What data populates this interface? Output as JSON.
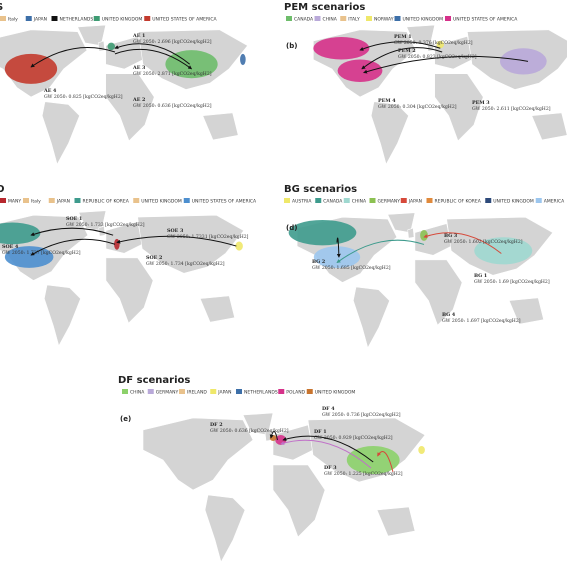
{
  "panels": [
    {
      "title": "S",
      "legend": [
        {
          "text": "Italy",
          "color": "#e9c28c"
        },
        {
          "text": "JAPAN",
          "color": "#3d6fa8"
        },
        {
          "text": "NETHERLANDS",
          "color": "#111111"
        },
        {
          "text": "UNITED KINGDOM",
          "color": "#3e9b73"
        },
        {
          "text": "UNITED STATES OF AMERICA",
          "color": "#c33b2e"
        }
      ],
      "annotations": [
        {
          "name": "AE 1",
          "text": "GW 2050: 2.696 [kgCO2eq/kgH2]"
        },
        {
          "name": "AE 3",
          "text": "GW 2050: 2.871 [kgCO2eq/kgH2]"
        },
        {
          "name": "AE 2",
          "text": "GW 2050: 0.636 [kgCO2eq/kgH2]"
        },
        {
          "name": "AE 4",
          "text": "GW 2050: 0.825 [kgCO2eq/kgH2]"
        }
      ]
    },
    {
      "title": "PEM scenarios",
      "label": "(b)",
      "legend": [
        {
          "text": "CANADA",
          "color": "#6ebd6b"
        },
        {
          "text": "CHINA",
          "color": "#b9a9d9"
        },
        {
          "text": "ITALY",
          "color": "#e9c28c"
        },
        {
          "text": "NORWAY",
          "color": "#efe86a"
        },
        {
          "text": "UNITED KINGDOM",
          "color": "#3d6fa8"
        },
        {
          "text": "UNITED STATES OF AMERICA",
          "color": "#d6318a"
        }
      ],
      "annotations": [
        {
          "name": "PEM 1",
          "text": "GW 2050: 0.376 [kgCO2eq/kgH2]"
        },
        {
          "name": "PEM 2",
          "text": "GW 2050: 0.823 [kgCO2eq/kgH2]"
        },
        {
          "name": "PEM 4",
          "text": "GW 2050: 0.304 [kgCO2eq/kgH2]"
        },
        {
          "name": "PEM 3",
          "text": "GW 2050: 2.611 [kgCO2eq/kgH2]"
        }
      ]
    },
    {
      "title": "O",
      "legend": [
        {
          "text": "MANY",
          "color": "#b7282e"
        },
        {
          "text": "Italy",
          "color": "#e9c28c"
        },
        {
          "text": "JAPAN",
          "color": "#e9c28c"
        },
        {
          "text": "REPUBLIC OF KOREA",
          "color": "#3e9b8d"
        },
        {
          "text": "UNITED KINGDOM",
          "color": "#e9c28c"
        },
        {
          "text": "UNITED STATES OF AMERICA",
          "color": "#4d8fcf"
        }
      ],
      "annotations": [
        {
          "name": "SOE 1",
          "text": "GW 2050: 1.733 [kgCO2eq/kgH2]"
        },
        {
          "name": "SOE 3",
          "text": "GW 2050: 1.7331 [kgCO2eq/kgH2]"
        },
        {
          "name": "SOE 4",
          "text": "GW 2050: 1.737 [kgCO2eq/kgH2]"
        },
        {
          "name": "SOE 2",
          "text": "GW 2050: 1.734 [kgCO2eq/kgH2]"
        }
      ]
    },
    {
      "title": "BG scenarios",
      "label": "(d)",
      "legend": [
        {
          "text": "AUSTRIA",
          "color": "#efe86a"
        },
        {
          "text": "CANADA",
          "color": "#3e9b8d"
        },
        {
          "text": "CHINA",
          "color": "#9fd8d0"
        },
        {
          "text": "GERMANY",
          "color": "#8cc152"
        },
        {
          "text": "JAPAN",
          "color": "#d6493a"
        },
        {
          "text": "REPUBLIC OF KOREA",
          "color": "#e08a3c"
        },
        {
          "text": "UNITED KINGDOM",
          "color": "#2e4a7a"
        },
        {
          "text": "AMERICA",
          "color": "#9cc6ee"
        }
      ],
      "annotations": [
        {
          "name": "BG 3",
          "text": "GW 2050: 1.602 [kgCO2eq/kgH2]"
        },
        {
          "name": "BG 2",
          "text": "GW 2050: 1.685 [kgCO2eq/kgH2]"
        },
        {
          "name": "BG 1",
          "text": "GW 2050: 1.69 [kgCO2eq/kgH2]"
        },
        {
          "name": "BG 4",
          "text": "GW 2050: 1.697 [kgCO2eq/kgH2]"
        }
      ]
    },
    {
      "title": "DF scenarios",
      "label": "(e)",
      "legend": [
        {
          "text": "CHINA",
          "color": "#8cd16a"
        },
        {
          "text": "GERMANY",
          "color": "#b9a9d9"
        },
        {
          "text": "IRELAND",
          "color": "#e9c28c"
        },
        {
          "text": "JAPAN",
          "color": "#efe86a"
        },
        {
          "text": "NETHERLANDS",
          "color": "#3d6fa8"
        },
        {
          "text": "POLAND",
          "color": "#d6318a"
        },
        {
          "text": "UNITED KINGDOM",
          "color": "#c8742e"
        }
      ],
      "annotations": [
        {
          "name": "DF 4",
          "text": "GW 2050: 0.736 [kgCO2eq/kgH2]"
        },
        {
          "name": "DF 2",
          "text": "GW 2050: 0.636 [kgCO2eq/kgH2]"
        },
        {
          "name": "DF 1",
          "text": "GW 2050: 0.929 [kgCO2eq/kgH2]"
        },
        {
          "name": "DF 3",
          "text": "GW 2050: 1.225 [kgCO2eq/kgH2]"
        }
      ]
    }
  ]
}
